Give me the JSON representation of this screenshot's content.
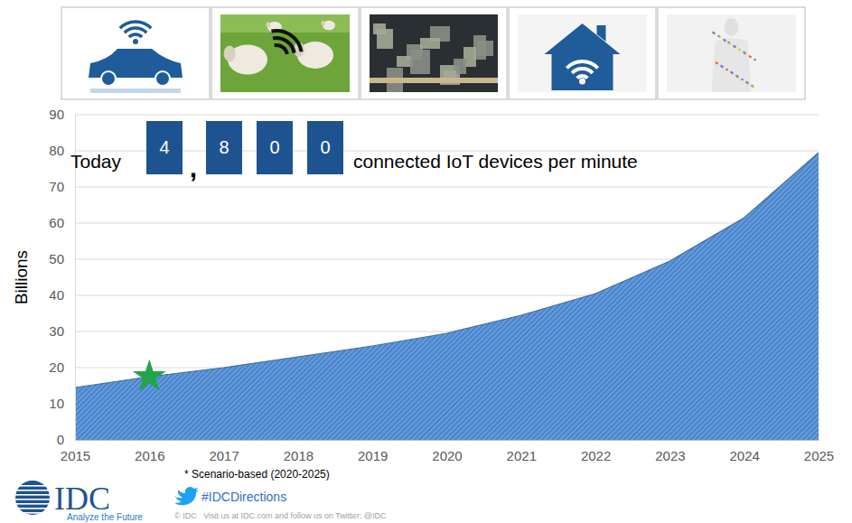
{
  "chart_data": {
    "type": "area",
    "y_label": "Billions",
    "x": [
      2015,
      2016,
      2017,
      2018,
      2019,
      2020,
      2021,
      2022,
      2023,
      2024,
      2025
    ],
    "values": [
      14.5,
      17.5,
      20,
      23,
      26,
      29.5,
      34.5,
      40.5,
      49.5,
      61.5,
      79.5
    ],
    "color": "#4f81bd",
    "xlim": [
      2015,
      2025
    ],
    "xticks": [
      2015,
      2016,
      2017,
      2018,
      2019,
      2020,
      2021,
      2022,
      2023,
      2024,
      2025
    ],
    "ylim": [
      0,
      90
    ],
    "yticks": [
      0,
      10,
      20,
      30,
      40,
      50,
      60,
      70,
      80,
      90
    ],
    "grid": true,
    "highlight": {
      "x": 2016,
      "y": 17.5,
      "color": "#21a54a",
      "marker": "star"
    },
    "counter": {
      "prefix": "Today",
      "digits": [
        "4",
        ",",
        "8",
        "0",
        "0"
      ],
      "suffix": "connected IoT devices per minute"
    },
    "footer": {
      "note": "* Scenario-based (2020-2025)",
      "logo": "IDC",
      "tagline": "Analyze the Future",
      "hashtag": "#IDCDirections",
      "copyright": "© IDC   Visit us at IDC.com and follow us on Twitter: @IDC"
    }
  }
}
